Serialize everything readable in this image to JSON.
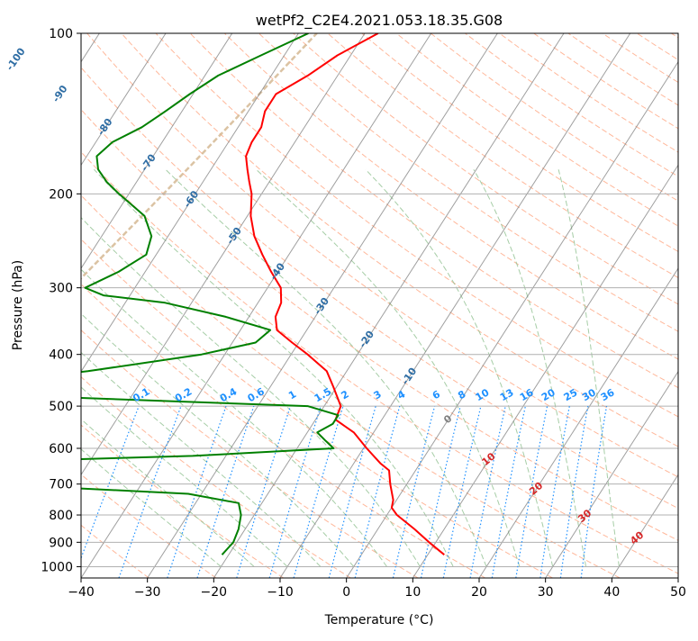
{
  "chart_data": {
    "type": "line",
    "subtype": "skew-t log-p sounding diagram",
    "title": "wetPf2_C2E4.2021.053.18.35.G08",
    "xlabel": "Temperature (°C)",
    "ylabel": "Pressure (hPa)",
    "xlim": [
      -40,
      50
    ],
    "ylim": [
      1050,
      100
    ],
    "y_scale": "log",
    "grid": true,
    "x_ticks": [
      "−40",
      "−30",
      "−20",
      "−10",
      "0",
      "10",
      "20",
      "30",
      "40",
      "50"
    ],
    "x_tick_values": [
      -40,
      -30,
      -20,
      -10,
      0,
      10,
      20,
      30,
      40,
      50
    ],
    "y_ticks": [
      "100",
      "200",
      "300",
      "400",
      "500",
      "600",
      "700",
      "800",
      "900",
      "1000"
    ],
    "y_tick_values": [
      100,
      200,
      300,
      400,
      500,
      600,
      700,
      800,
      900,
      1000
    ],
    "colors": {
      "temperature": "#ff0000",
      "dewpoint": "#008000",
      "isotherm": "#808080",
      "dry_adiabat": "#ffa07a",
      "moist_adiabat": "#90c090",
      "mixing_ratio": "#1e90ff",
      "frost_point_isotherm": "#2e6da4",
      "heat_isotherm": "#d62728",
      "saturation_curve": "#d2b48c"
    },
    "series": [
      {
        "key": "temperature",
        "points": [
          {
            "p": 100,
            "t": -48.0
          },
          {
            "p": 110,
            "t": -52.0
          },
          {
            "p": 120,
            "t": -54.5
          },
          {
            "p": 130,
            "t": -57.5
          },
          {
            "p": 140,
            "t": -57.5
          },
          {
            "p": 150,
            "t": -56.5
          },
          {
            "p": 160,
            "t": -56.5
          },
          {
            "p": 170,
            "t": -56.0
          },
          {
            "p": 180,
            "t": -54.5
          },
          {
            "p": 190,
            "t": -53.0
          },
          {
            "p": 200,
            "t": -51.5
          },
          {
            "p": 220,
            "t": -49.5
          },
          {
            "p": 240,
            "t": -47.0
          },
          {
            "p": 260,
            "t": -44.0
          },
          {
            "p": 280,
            "t": -41.0
          },
          {
            "p": 300,
            "t": -38.0
          },
          {
            "p": 320,
            "t": -36.5
          },
          {
            "p": 340,
            "t": -36.0
          },
          {
            "p": 360,
            "t": -34.5
          },
          {
            "p": 380,
            "t": -31.0
          },
          {
            "p": 400,
            "t": -27.5
          },
          {
            "p": 430,
            "t": -23.0
          },
          {
            "p": 460,
            "t": -20.5
          },
          {
            "p": 500,
            "t": -17.5
          },
          {
            "p": 530,
            "t": -17.0
          },
          {
            "p": 560,
            "t": -13.0
          },
          {
            "p": 600,
            "t": -9.5
          },
          {
            "p": 640,
            "t": -6.0
          },
          {
            "p": 660,
            "t": -4.0
          },
          {
            "p": 700,
            "t": -2.5
          },
          {
            "p": 750,
            "t": -0.5
          },
          {
            "p": 775,
            "t": 0.0
          },
          {
            "p": 800,
            "t": 1.5
          },
          {
            "p": 850,
            "t": 5.5
          },
          {
            "p": 900,
            "t": 9.0
          },
          {
            "p": 950,
            "t": 12.5
          }
        ]
      },
      {
        "key": "dewpoint",
        "points": [
          {
            "p": 100,
            "t": -58.5
          },
          {
            "p": 110,
            "t": -63.5
          },
          {
            "p": 120,
            "t": -68.0
          },
          {
            "p": 130,
            "t": -70.5
          },
          {
            "p": 140,
            "t": -72.5
          },
          {
            "p": 150,
            "t": -74.5
          },
          {
            "p": 160,
            "t": -77.5
          },
          {
            "p": 170,
            "t": -78.5
          },
          {
            "p": 180,
            "t": -77.0
          },
          {
            "p": 190,
            "t": -74.5
          },
          {
            "p": 200,
            "t": -71.5
          },
          {
            "p": 220,
            "t": -65.5
          },
          {
            "p": 240,
            "t": -62.5
          },
          {
            "p": 260,
            "t": -61.5
          },
          {
            "p": 280,
            "t": -64.0
          },
          {
            "p": 300,
            "t": -67.5
          },
          {
            "p": 310,
            "t": -64.0
          },
          {
            "p": 320,
            "t": -54.0
          },
          {
            "p": 340,
            "t": -43.5
          },
          {
            "p": 360,
            "t": -35.5
          },
          {
            "p": 380,
            "t": -36.5
          },
          {
            "p": 400,
            "t": -43.5
          },
          {
            "p": 430,
            "t": -59.0
          },
          {
            "p": 450,
            "t": -72.0
          },
          {
            "p": 470,
            "t": -87.0
          },
          {
            "p": 480,
            "t": -63.0
          },
          {
            "p": 500,
            "t": -22.5
          },
          {
            "p": 520,
            "t": -17.0
          },
          {
            "p": 540,
            "t": -17.0
          },
          {
            "p": 560,
            "t": -18.5
          },
          {
            "p": 580,
            "t": -16.5
          },
          {
            "p": 600,
            "t": -14.5
          },
          {
            "p": 620,
            "t": -35.0
          },
          {
            "p": 640,
            "t": -73.0
          },
          {
            "p": 660,
            "t": -73.0
          },
          {
            "p": 680,
            "t": -89.5
          },
          {
            "p": 700,
            "t": -62.5
          },
          {
            "p": 730,
            "t": -32.0
          },
          {
            "p": 760,
            "t": -23.5
          },
          {
            "p": 800,
            "t": -22.0
          },
          {
            "p": 850,
            "t": -21.0
          },
          {
            "p": 900,
            "t": -20.5
          },
          {
            "p": 950,
            "t": -21.0
          }
        ]
      }
    ],
    "isotherm_labels": [
      "-100",
      "-90",
      "-80",
      "-70",
      "-60",
      "-50",
      "-40",
      "-30",
      "-20",
      "-10"
    ],
    "isotherm_label_values": [
      -100,
      -90,
      -80,
      -70,
      -60,
      -50,
      -40,
      -30,
      -20,
      -10
    ],
    "mixing_ratio_labels": [
      "0.1",
      "0.2",
      "0.4",
      "0.6",
      "1",
      "1.5",
      "2",
      "3",
      "4",
      "6",
      "8",
      "10",
      "13",
      "16",
      "20",
      "25",
      "30",
      "36"
    ],
    "mixing_ratio_values": [
      0.1,
      0.2,
      0.4,
      0.6,
      1,
      1.5,
      2,
      3,
      4,
      6,
      8,
      10,
      13,
      16,
      20,
      25,
      30,
      36
    ],
    "warm_isotherm_labels": [
      "0",
      "10",
      "20",
      "30",
      "40"
    ],
    "warm_isotherm_values": [
      0,
      10,
      20,
      30,
      40
    ]
  }
}
